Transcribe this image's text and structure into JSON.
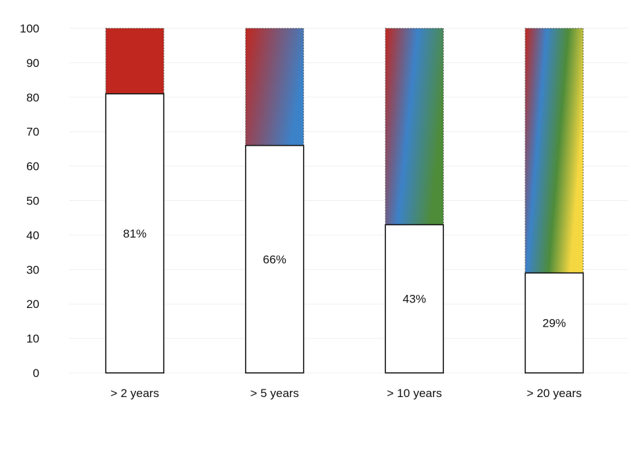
{
  "chart_data": {
    "type": "bar",
    "stacked": true,
    "categories": [
      "> 2 years",
      "> 5 years",
      "> 10 years",
      "> 20 years"
    ],
    "values": [
      81,
      66,
      43,
      29
    ],
    "value_labels": [
      "81%",
      "66%",
      "43%",
      "29%"
    ],
    "remainder_color_stops": [
      [
        "#c0271f"
      ],
      [
        "#c0271f",
        "#3c82c8"
      ],
      [
        "#c0271f",
        "#3c82c8",
        "#4e8c3a"
      ],
      [
        "#c0271f",
        "#3c82c8",
        "#4e8c3a",
        "#f5d742"
      ]
    ],
    "ylim": [
      0,
      100
    ],
    "yticks": [
      0,
      10,
      20,
      30,
      40,
      50,
      60,
      70,
      80,
      90,
      100
    ],
    "ytick_labels": [
      "0",
      "10",
      "20",
      "30",
      "40",
      "50",
      "60",
      "70",
      "80",
      "90",
      "100"
    ],
    "grid": true,
    "legend": "none",
    "title": "",
    "xlabel": "",
    "ylabel": ""
  }
}
